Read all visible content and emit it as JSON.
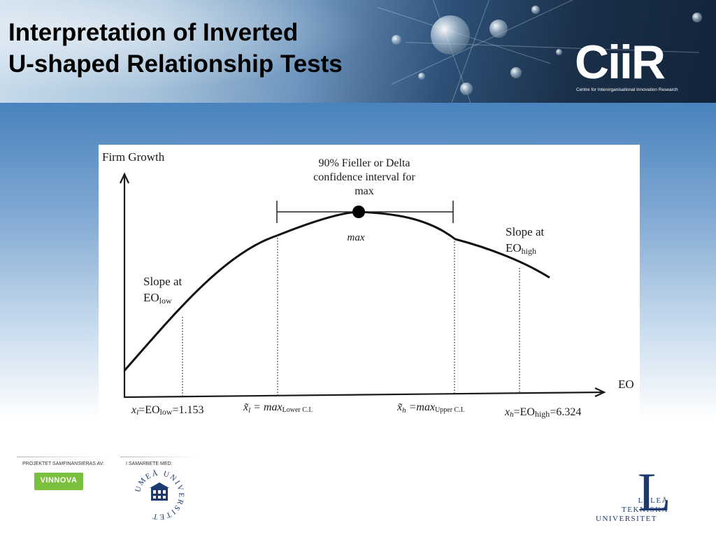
{
  "slide": {
    "title_line1": "Interpretation of Inverted",
    "title_line2": "U-shaped Relationship Tests"
  },
  "logo": {
    "name": "CiiR",
    "subtitle": "Centre for Interorganisational Innovation Research"
  },
  "figure": {
    "y_axis_label": "Firm Growth",
    "x_axis_label": "EO",
    "ci_label_line1": "90% Fieller or Delta",
    "ci_label_line2": "confidence interval for",
    "ci_label_line3": "max",
    "max_label": "max",
    "slope_low_line1": "Slope at",
    "slope_low_base": "EO",
    "slope_low_sub": "low",
    "slope_high_line1": "Slope at",
    "slope_high_base": "EO",
    "slope_high_sub": "high",
    "tick_xl": {
      "var": "x",
      "var_sub": "l",
      "eq": "=EO",
      "eq_sub": "low",
      "value": "=1.153"
    },
    "tick_lower": {
      "var": "x̃",
      "var_sub": "l",
      "eq": " = max",
      "eq_sub": "Lower C.I."
    },
    "tick_upper": {
      "var": "x̃",
      "var_sub": "h",
      "eq": " =max",
      "eq_sub": "Upper C.I."
    },
    "tick_xh": {
      "var": "x",
      "var_sub": "h",
      "eq": "=EO",
      "eq_sub": "high",
      "value": "=6.324"
    }
  },
  "footer": {
    "sponsor_label_left": "PROJEKTET SAMFINANSIERAS AV:",
    "sponsor_label_right": "I SAMARBETE MED:",
    "vinnova_logo": "VINNOVA",
    "umea_logo_text": "UMEÅ UNIVERSITET",
    "ltu_line1": "LULEÅ",
    "ltu_line2": "TEKNISKA",
    "ltu_line3": "UNIVERSITET",
    "ltu_mark": "L"
  }
}
